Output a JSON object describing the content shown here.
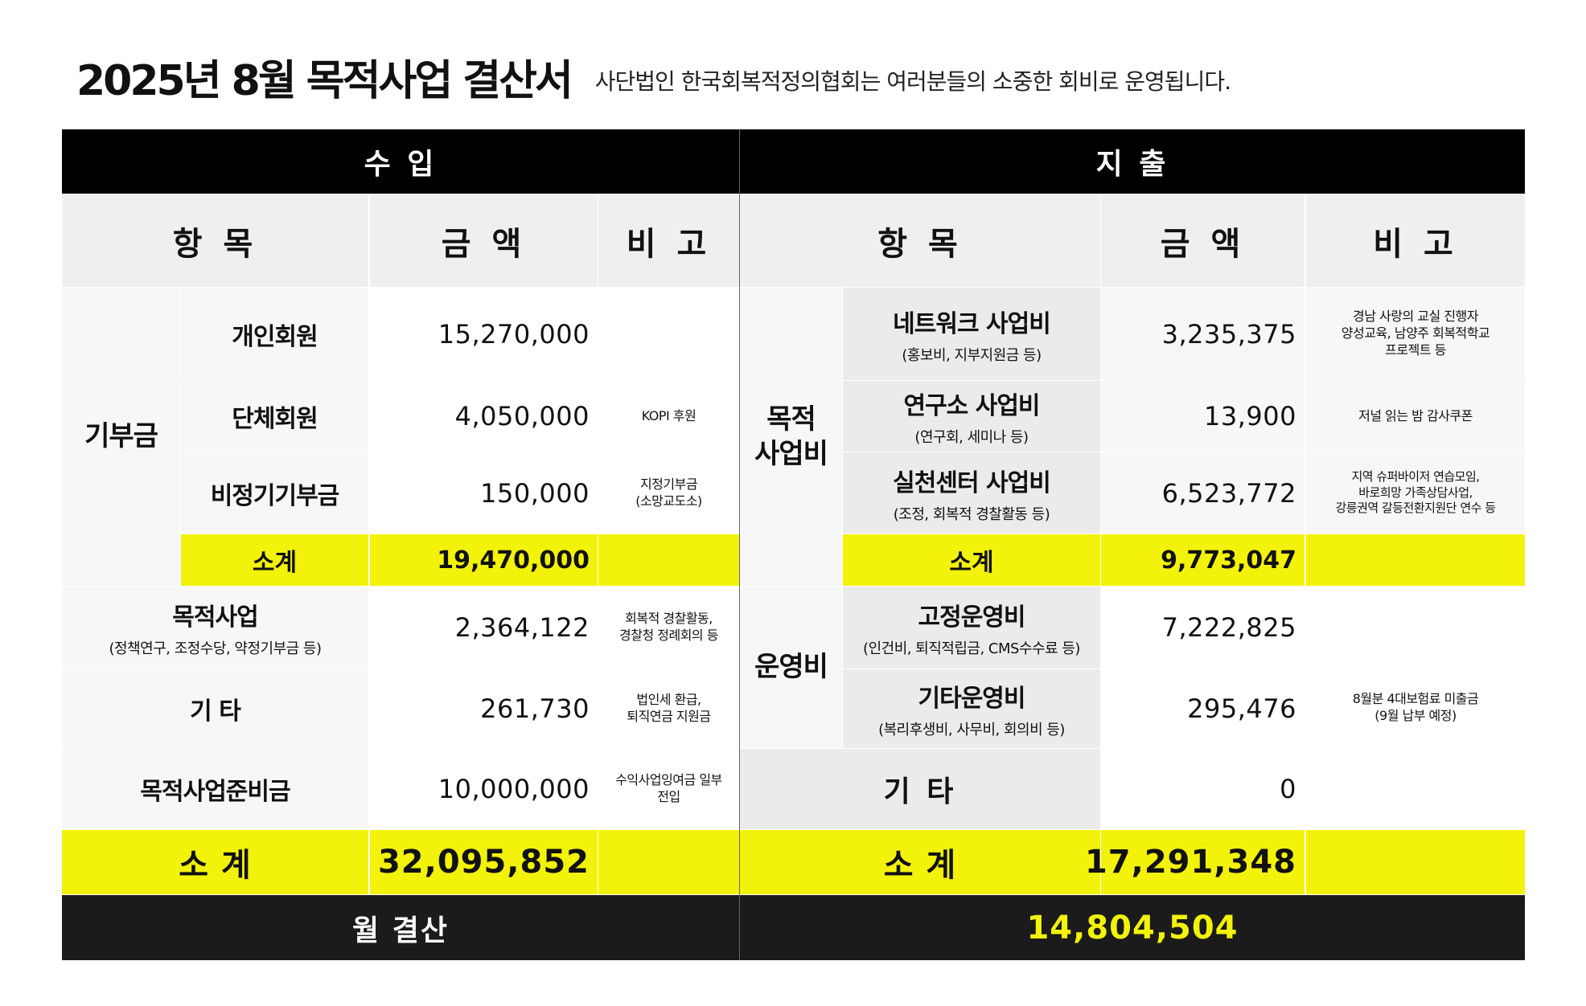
{
  "header": {
    "title": "2025년 8월 목적사업 결산서",
    "subtitle": "사단법인 한국회복적정의협회는 여러분들의 소중한 회비로 운영됩니다."
  },
  "sections": {
    "income": "수 입",
    "expense": "지 출"
  },
  "columns": {
    "income": {
      "item": "항 목",
      "amount": "금 액",
      "note": "비 고"
    },
    "expense": {
      "item": "항 목",
      "amount": "금 액",
      "note": "비 고"
    }
  },
  "income": {
    "donation_group": "기부금",
    "donations": [
      {
        "item": "개인회원",
        "amount": "15,270,000",
        "note": ""
      },
      {
        "item": "단체회원",
        "amount": "4,050,000",
        "note": "KOPI 후원"
      },
      {
        "item": "비정기기부금",
        "amount": "150,000",
        "note_lines": [
          "지정기부금",
          "(소망교도소)"
        ]
      }
    ],
    "donation_subtotal": {
      "label": "소계",
      "amount": "19,470,000"
    },
    "rows": [
      {
        "item": "목적사업",
        "sub": "(정책연구, 조정수당, 약정기부금 등)",
        "amount": "2,364,122",
        "note_lines": [
          "회복적 경찰활동,",
          "경찰청 정례회의 등"
        ]
      },
      {
        "item": "기 타",
        "amount": "261,730",
        "note_lines": [
          "법인세 환급,",
          "퇴직연금 지원금"
        ]
      },
      {
        "item": "목적사업준비금",
        "amount": "10,000,000",
        "note_lines": [
          "수익사업잉여금 일부",
          "전입"
        ]
      }
    ],
    "total": {
      "label": "소 계",
      "amount": "32,095,852"
    }
  },
  "expense": {
    "purpose_group_lines": [
      "목적",
      "사업비"
    ],
    "purpose": [
      {
        "item": "네트워크 사업비",
        "sub": "(홍보비, 지부지원금 등)",
        "amount": "3,235,375",
        "note_lines": [
          "경남 사랑의 교실  진행자",
          "양성교육, 남양주 회복적학교",
          "프로젝트 등"
        ]
      },
      {
        "item": "연구소 사업비",
        "sub": "(연구회, 세미나 등)",
        "amount": "13,900",
        "note_lines": [
          "저널 읽는 밤 감사쿠폰"
        ]
      },
      {
        "item": "실천센터 사업비",
        "sub": "(조정, 회복적 경찰활동 등)",
        "amount": "6,523,772",
        "note_lines": [
          "지역 슈퍼바이저 연습모임,",
          "바로희망 가족상담사업,",
          "강릉권역 갈등전환지원단 연수 등"
        ]
      }
    ],
    "purpose_subtotal": {
      "label": "소계",
      "amount": "9,773,047"
    },
    "operation_group": "운영비",
    "operation": [
      {
        "item": "고정운영비",
        "sub": "(인건비, 퇴직적립금, CMS수수료 등)",
        "amount": "7,222,825"
      },
      {
        "item": "기타운영비",
        "sub": "(복리후생비, 사무비, 회의비 등)",
        "amount": "295,476"
      }
    ],
    "operation_note_lines": [
      "8월분 4대보험료 미출금",
      "(9월 납부 예정)"
    ],
    "other": {
      "item": "기 타",
      "amount": "0"
    },
    "total": {
      "label": "소 계",
      "amount": "17,291,348"
    }
  },
  "monthly": {
    "label": "월 결산",
    "value": "14,804,504"
  },
  "colors": {
    "highlight": "#f2f20a",
    "header_bg": "#000000",
    "footer_bg": "#1b1b1b"
  }
}
